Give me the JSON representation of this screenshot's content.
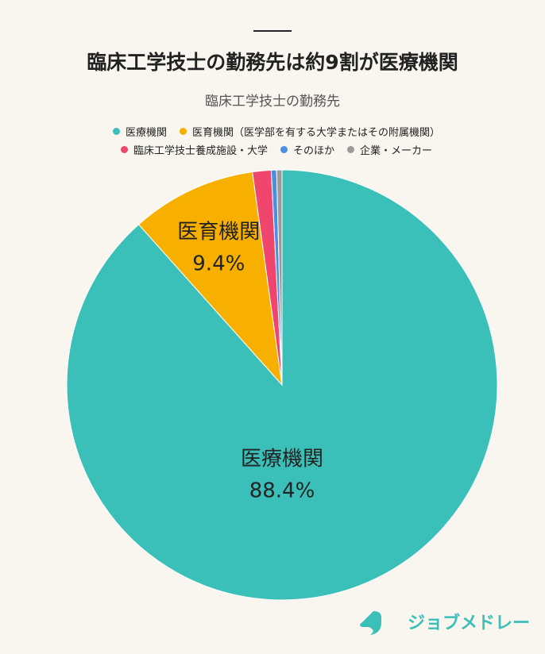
{
  "chart_data": {
    "type": "pie",
    "title": "臨床工学技士の勤務先は約9割が医療機関",
    "subtitle": "臨床工学技士の勤務先",
    "categories": [
      "医療機関",
      "医育機関（医学部を有する大学またはその附属機関）",
      "臨床工学技士養成施設・大学",
      "そのほか",
      "企業・メーカー"
    ],
    "values": [
      88.4,
      9.4,
      1.4,
      0.4,
      0.4
    ],
    "value_labels": [
      "88.4%",
      "9.4%",
      null,
      null,
      null
    ],
    "slice_labels": [
      "医療機関",
      "医育機関",
      null,
      null,
      null
    ],
    "colors": [
      "#3bbfb9",
      "#f8b000",
      "#f0466e",
      "#4a8fe0",
      "#9a9a9a"
    ],
    "legend": "top"
  },
  "brand": "ジョブメドレー"
}
